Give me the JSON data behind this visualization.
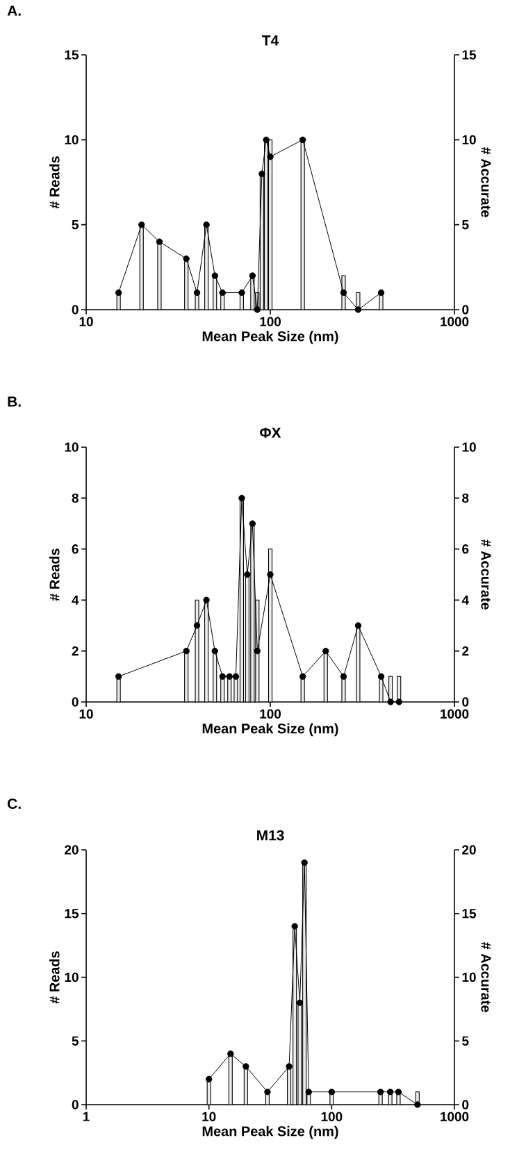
{
  "chart_data": [
    {
      "type": "bar",
      "title": "T4",
      "xlabel": "Mean Peak Size (nm)",
      "ylabel": "# Reads",
      "y2label": "# Accurate",
      "annotations": [
        "A."
      ],
      "log": "x",
      "marker": "circle",
      "x": [
        15,
        20,
        25,
        35,
        40,
        45,
        50,
        55,
        70,
        80,
        85,
        90,
        95,
        100,
        150,
        250,
        300,
        400
      ],
      "xlim": [
        10,
        1000
      ],
      "xticks": [
        10,
        100,
        1000
      ],
      "ylim": [
        0,
        15
      ],
      "yticks": [
        0,
        5,
        10,
        15
      ],
      "y2lim": [
        0,
        15
      ],
      "y2ticks": [
        0,
        5,
        10,
        15
      ],
      "series": [
        {
          "type": "bar",
          "color": "#ebebeb",
          "values": [
            1,
            5,
            4,
            3,
            1,
            5,
            2,
            1,
            1,
            2,
            1,
            8,
            10,
            10,
            10,
            2,
            1,
            1
          ]
        },
        {
          "type": "line",
          "axis": "y2",
          "color": "#000000",
          "values": [
            1,
            5,
            4,
            3,
            1,
            5,
            2,
            1,
            1,
            2,
            0,
            8,
            10,
            9,
            10,
            1,
            0,
            1
          ]
        }
      ]
    },
    {
      "type": "bar",
      "title": "ΦX",
      "xlabel": "Mean Peak Size (nm)",
      "ylabel": "# Reads",
      "y2label": "# Accurate",
      "annotations": [
        "B."
      ],
      "log": "x",
      "marker": "circle",
      "x": [
        15,
        35,
        40,
        45,
        50,
        55,
        60,
        65,
        70,
        75,
        80,
        85,
        100,
        150,
        200,
        250,
        300,
        400,
        450,
        500
      ],
      "xlim": [
        10,
        1000
      ],
      "xticks": [
        10,
        100,
        1000
      ],
      "ylim": [
        0,
        10
      ],
      "yticks": [
        0,
        2,
        4,
        6,
        8,
        10
      ],
      "y2lim": [
        0,
        10
      ],
      "y2ticks": [
        0,
        2,
        4,
        6,
        8,
        10
      ],
      "series": [
        {
          "type": "bar",
          "color": "#ebebeb",
          "values": [
            1,
            2,
            4,
            4,
            2,
            1,
            1,
            1,
            8,
            5,
            7,
            4,
            6,
            1,
            2,
            1,
            3,
            1,
            1,
            1
          ]
        },
        {
          "type": "line",
          "axis": "y2",
          "color": "#000000",
          "values": [
            1,
            2,
            3,
            4,
            2,
            1,
            1,
            1,
            8,
            5,
            7,
            2,
            5,
            1,
            2,
            1,
            3,
            1,
            0,
            0
          ]
        }
      ]
    },
    {
      "type": "bar",
      "title": "M13",
      "xlabel": "Mean Peak Size (nm)",
      "ylabel": "# Reads",
      "y2label": "# Accurate",
      "annotations": [
        "C."
      ],
      "log": "x",
      "marker": "circle",
      "x": [
        10,
        15,
        20,
        30,
        45,
        50,
        55,
        60,
        65,
        100,
        250,
        300,
        350,
        500
      ],
      "xlim": [
        1,
        1000
      ],
      "xticks": [
        1,
        10,
        100,
        1000
      ],
      "ylim": [
        0,
        20
      ],
      "yticks": [
        0,
        5,
        10,
        15,
        20
      ],
      "y2lim": [
        0,
        20
      ],
      "y2ticks": [
        0,
        5,
        10,
        15,
        20
      ],
      "series": [
        {
          "type": "bar",
          "color": "#ebebeb",
          "values": [
            2,
            4,
            3,
            1,
            3,
            14,
            8,
            19,
            1,
            1,
            1,
            1,
            1,
            1
          ]
        },
        {
          "type": "line",
          "axis": "y2",
          "color": "#000000",
          "values": [
            2,
            4,
            3,
            1,
            3,
            14,
            8,
            19,
            1,
            1,
            1,
            1,
            1,
            0
          ]
        }
      ]
    }
  ]
}
